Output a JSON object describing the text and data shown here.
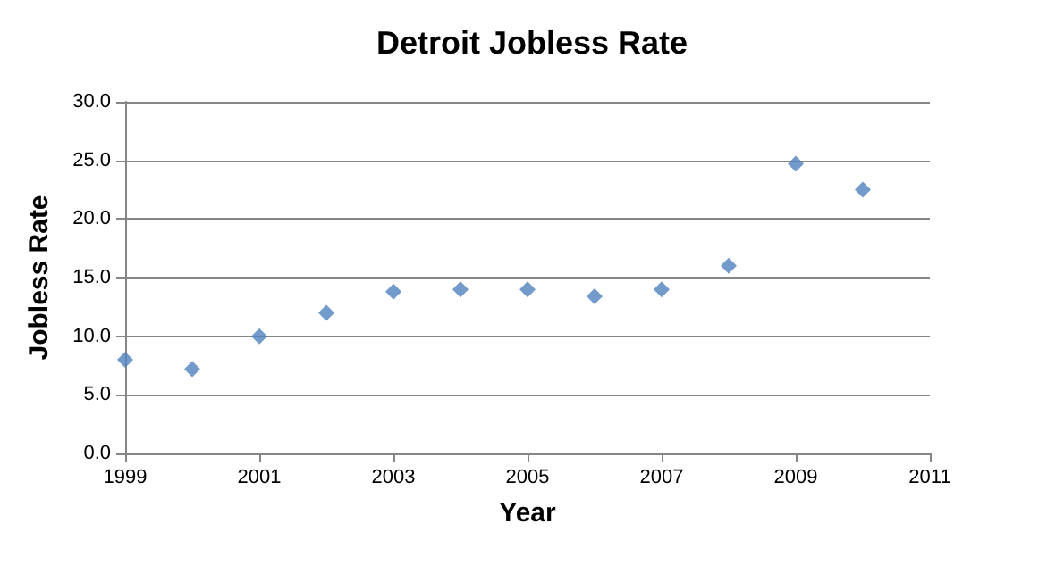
{
  "chart_data": {
    "type": "scatter",
    "title": "Detroit Jobless Rate",
    "xlabel": "Year",
    "ylabel": "Jobless Rate",
    "x": [
      1999,
      2000,
      2001,
      2002,
      2003,
      2004,
      2005,
      2006,
      2007,
      2008,
      2009,
      2010
    ],
    "series": [
      {
        "color": "#4f81bd",
        "values": [
          8.0,
          7.2,
          10.0,
          12.0,
          13.8,
          14.0,
          14.0,
          13.4,
          14.0,
          16.0,
          24.7,
          22.5
        ]
      }
    ],
    "xlim": [
      1999,
      2011
    ],
    "xticks": [
      1999,
      2001,
      2003,
      2005,
      2007,
      2009,
      2011
    ],
    "ylim": [
      0,
      30
    ],
    "yticks": [
      {
        "value": 0,
        "label": "0.0"
      },
      {
        "value": 5,
        "label": "5.0"
      },
      {
        "value": 10,
        "label": "10.0"
      },
      {
        "value": 15,
        "label": "15.0"
      },
      {
        "value": 20,
        "label": "20.0"
      },
      {
        "value": 25,
        "label": "25.0"
      },
      {
        "value": 30,
        "label": "30.0"
      }
    ],
    "grid": "y",
    "marker": "diamond"
  }
}
